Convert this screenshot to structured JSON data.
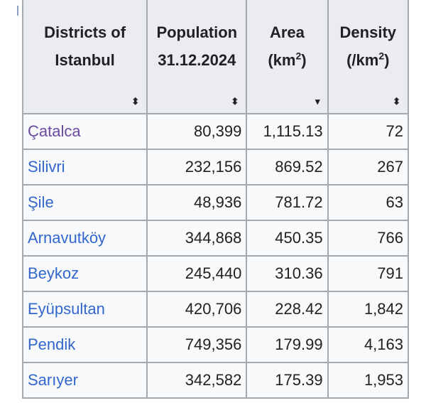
{
  "table": {
    "headers": [
      {
        "line1": "Districts of",
        "line2": "Istanbul",
        "sort_icon": "sort-both-icon",
        "glyph": "⬍"
      },
      {
        "line1": "Population",
        "line2": "31.12.2024",
        "sort_icon": "sort-both-icon",
        "glyph": "⬍"
      },
      {
        "line1": "Area",
        "line2": "(km",
        "sup": "2",
        "close": ")",
        "sort_icon": "sort-descending-icon",
        "glyph": "▾"
      },
      {
        "line1": "Density",
        "line2": "(/km",
        "sup": "2",
        "close": ")",
        "sort_icon": "sort-both-icon",
        "glyph": "⬍"
      }
    ],
    "rows": [
      {
        "district": "Çatalca",
        "population": "80,399",
        "area": "1,115.13",
        "density": "72",
        "visited": true
      },
      {
        "district": "Silivri",
        "population": "232,156",
        "area": "869.52",
        "density": "267"
      },
      {
        "district": "Şile",
        "population": "48,936",
        "area": "781.72",
        "density": "63"
      },
      {
        "district": "Arnavutköy",
        "population": "344,868",
        "area": "450.35",
        "density": "766"
      },
      {
        "district": "Beykoz",
        "population": "245,440",
        "area": "310.36",
        "density": "791"
      },
      {
        "district": "Eyüpsultan",
        "population": "420,706",
        "area": "228.42",
        "density": "1,842"
      },
      {
        "district": "Pendik",
        "population": "749,356",
        "area": "179.99",
        "density": "4,163"
      },
      {
        "district": "Sarıyer",
        "population": "342,582",
        "area": "175.39",
        "density": "1,953"
      }
    ]
  },
  "colors": {
    "link": "#3366cc",
    "visited_link": "#6b4ba1",
    "header_bg": "#eaecf0",
    "border": "#a2a9b1"
  }
}
